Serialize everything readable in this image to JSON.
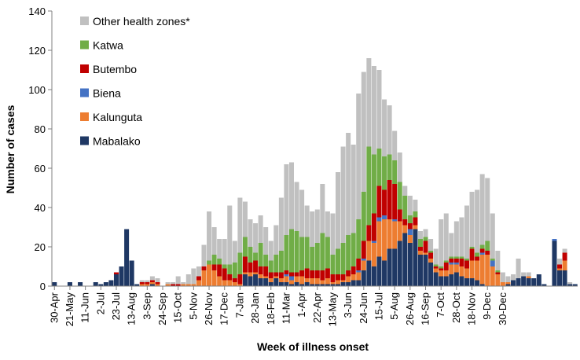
{
  "chart_data": {
    "type": "bar",
    "stacked": true,
    "xlabel": "Week of illness onset",
    "ylabel": "Number of cases",
    "ylim": [
      0,
      140
    ],
    "yticks": [
      0,
      20,
      40,
      60,
      80,
      100,
      120,
      140
    ],
    "grid": false,
    "legend_position": "top-left",
    "x_tick_labels": [
      "30-Apr",
      "21-May",
      "11-Jun",
      "2-Jul",
      "23-Jul",
      "13-Aug",
      "3-Sep",
      "24-Sep",
      "15-Oct",
      "5-Nov",
      "26-Nov",
      "17-Dec",
      "7-Jan",
      "28-Jan",
      "18-Feb",
      "11-Mar",
      "1-Apr",
      "22-Apr",
      "13-May",
      "3-Jun",
      "24-Jun",
      "15-Jul",
      "5-Aug",
      "26-Aug",
      "16-Sep",
      "7-Oct",
      "28-Oct",
      "18-Nov",
      "9-Dec",
      "30-Dec"
    ],
    "series": [
      {
        "name": "Mabalako",
        "color": "#1f3864",
        "values": [
          2,
          0,
          0,
          2,
          0,
          2,
          0,
          0,
          2,
          1,
          2,
          3,
          6,
          10,
          29,
          13,
          1,
          0,
          0,
          1,
          0,
          0,
          0,
          0,
          0,
          0,
          0,
          0,
          0,
          0,
          0,
          0,
          0,
          0,
          0,
          0,
          0,
          6,
          5,
          6,
          4,
          4,
          2,
          4,
          2,
          2,
          1,
          2,
          1,
          2,
          1,
          1,
          1,
          1,
          1,
          1,
          2,
          2,
          3,
          3,
          8,
          13,
          10,
          15,
          13,
          19,
          19,
          23,
          27,
          22,
          29,
          16,
          16,
          12,
          7,
          5,
          5,
          6,
          7,
          5,
          4,
          4,
          3,
          1,
          0,
          0,
          0,
          0,
          1,
          3,
          4,
          5,
          4,
          4,
          6,
          1,
          0,
          23,
          8,
          8,
          1,
          1
        ]
      },
      {
        "name": "Kalunguta",
        "color": "#ed7d31",
        "values": [
          0,
          0,
          0,
          0,
          0,
          0,
          0,
          0,
          0,
          0,
          0,
          0,
          0,
          0,
          0,
          0,
          0,
          1,
          1,
          1,
          1,
          0,
          1,
          0,
          0,
          1,
          1,
          1,
          3,
          8,
          11,
          8,
          5,
          3,
          3,
          2,
          1,
          1,
          2,
          1,
          2,
          1,
          2,
          1,
          2,
          3,
          2,
          3,
          4,
          2,
          3,
          3,
          2,
          3,
          1,
          2,
          1,
          3,
          3,
          4,
          5,
          10,
          12,
          18,
          21,
          15,
          14,
          10,
          4,
          4,
          2,
          2,
          1,
          2,
          2,
          3,
          3,
          5,
          4,
          5,
          5,
          9,
          10,
          15,
          16,
          10,
          6,
          2,
          1,
          0,
          0,
          0,
          1,
          0,
          0,
          0,
          0,
          0,
          1,
          5,
          0,
          0
        ]
      },
      {
        "name": "Biena",
        "color": "#4472c4",
        "values": [
          0,
          0,
          0,
          0,
          0,
          0,
          0,
          0,
          0,
          0,
          0,
          0,
          0,
          0,
          0,
          0,
          0,
          0,
          0,
          0,
          0,
          0,
          0,
          0,
          0,
          0,
          0,
          0,
          0,
          0,
          0,
          0,
          0,
          0,
          0,
          0,
          0,
          0,
          0,
          0,
          0,
          0,
          0,
          0,
          0,
          1,
          2,
          0,
          0,
          0,
          0,
          0,
          0,
          0,
          0,
          0,
          0,
          0,
          0,
          1,
          1,
          0,
          1,
          2,
          2,
          0,
          1,
          0,
          0,
          3,
          0,
          0,
          0,
          0,
          0,
          0,
          0,
          1,
          1,
          0,
          0,
          0,
          0,
          1,
          0,
          3,
          0,
          0,
          0,
          0,
          0,
          0,
          0,
          0,
          0,
          0,
          0,
          1,
          0,
          0,
          0,
          0
        ]
      },
      {
        "name": "Butembo",
        "color": "#c00000",
        "values": [
          0,
          0,
          0,
          0,
          0,
          0,
          0,
          0,
          0,
          0,
          0,
          0,
          1,
          0,
          0,
          0,
          0,
          1,
          1,
          1,
          1,
          0,
          0,
          1,
          1,
          0,
          0,
          0,
          2,
          2,
          0,
          3,
          6,
          6,
          3,
          2,
          5,
          8,
          5,
          6,
          4,
          5,
          3,
          2,
          3,
          2,
          2,
          2,
          3,
          5,
          4,
          4,
          5,
          5,
          4,
          3,
          3,
          3,
          4,
          6,
          9,
          8,
          14,
          16,
          13,
          20,
          18,
          6,
          3,
          3,
          4,
          2,
          6,
          3,
          1,
          1,
          4,
          2,
          2,
          4,
          4,
          6,
          2,
          2,
          2,
          0,
          1,
          0,
          0,
          0,
          0,
          0,
          0,
          0,
          0,
          0,
          0,
          0,
          2,
          4,
          0,
          0
        ]
      },
      {
        "name": "Katwa",
        "color": "#70ad47",
        "values": [
          0,
          0,
          0,
          0,
          0,
          0,
          0,
          0,
          0,
          0,
          0,
          0,
          0,
          0,
          0,
          0,
          0,
          0,
          0,
          0,
          0,
          0,
          0,
          0,
          0,
          0,
          0,
          0,
          0,
          0,
          2,
          5,
          3,
          2,
          5,
          8,
          11,
          10,
          8,
          4,
          12,
          6,
          6,
          9,
          11,
          18,
          22,
          21,
          17,
          16,
          12,
          14,
          19,
          16,
          10,
          13,
          16,
          18,
          17,
          20,
          25,
          40,
          30,
          19,
          17,
          13,
          12,
          14,
          12,
          4,
          3,
          4,
          2,
          1,
          1,
          1,
          1,
          1,
          1,
          1,
          1,
          1,
          2,
          2,
          5,
          1,
          1,
          0,
          0,
          0,
          0,
          0,
          0,
          0,
          0,
          0,
          0,
          0,
          0,
          0,
          0,
          0
        ]
      },
      {
        "name": "Other health zones*",
        "color": "#c0c0c0",
        "values": [
          0,
          0,
          0,
          0,
          0,
          0,
          0,
          0,
          0,
          0,
          0,
          0,
          0,
          0,
          0,
          0,
          0,
          1,
          1,
          2,
          2,
          0,
          1,
          1,
          4,
          1,
          5,
          8,
          5,
          11,
          25,
          14,
          10,
          13,
          30,
          11,
          28,
          18,
          14,
          15,
          14,
          14,
          10,
          15,
          27,
          36,
          34,
          25,
          24,
          16,
          18,
          17,
          25,
          13,
          21,
          39,
          49,
          52,
          45,
          64,
          61,
          45,
          45,
          40,
          29,
          25,
          15,
          15,
          5,
          10,
          6,
          4,
          4,
          6,
          8,
          24,
          24,
          12,
          18,
          20,
          27,
          28,
          32,
          36,
          32,
          23,
          10,
          5,
          3,
          3,
          10,
          2,
          2,
          0,
          0,
          0,
          0,
          0,
          3,
          2,
          1,
          0
        ]
      }
    ]
  }
}
